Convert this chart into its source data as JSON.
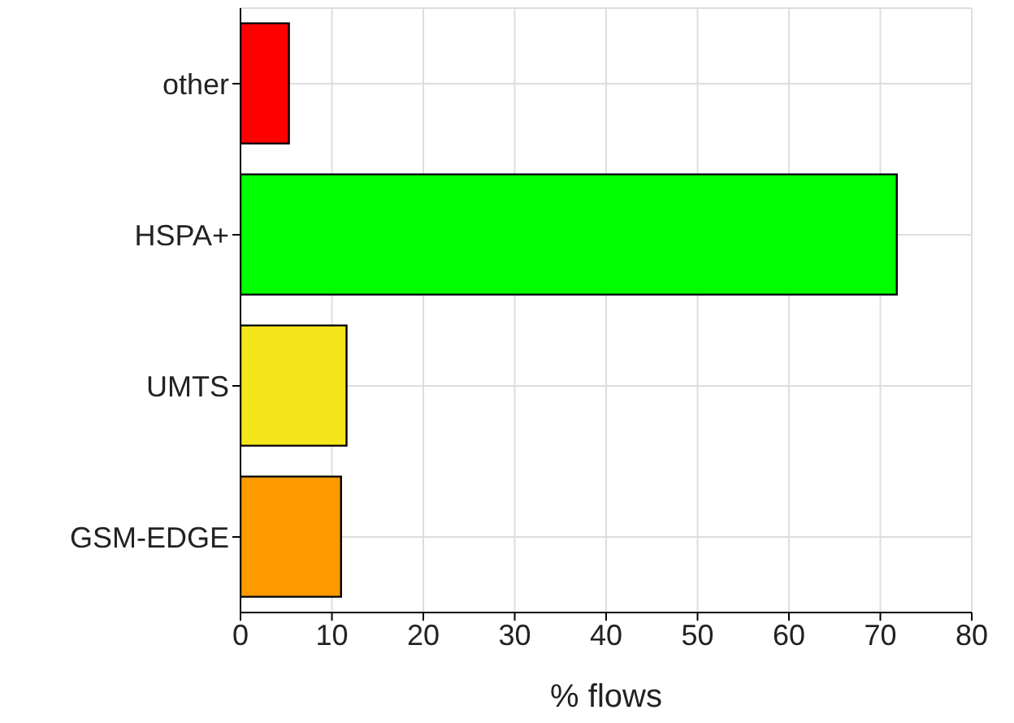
{
  "chart_data": {
    "type": "bar",
    "orientation": "horizontal",
    "xlabel": "% flows",
    "categories": [
      "other",
      "HSPA+",
      "UMTS",
      "GSM-EDGE"
    ],
    "values": [
      5.3,
      71.8,
      11.6,
      11.0
    ],
    "colors": [
      "#ff0000",
      "#00ff00",
      "#f5e61c",
      "#ff9900"
    ],
    "xlim": [
      0,
      80
    ],
    "xticks": [
      0,
      10,
      20,
      30,
      40,
      50,
      60,
      70,
      80
    ],
    "grid": true
  }
}
